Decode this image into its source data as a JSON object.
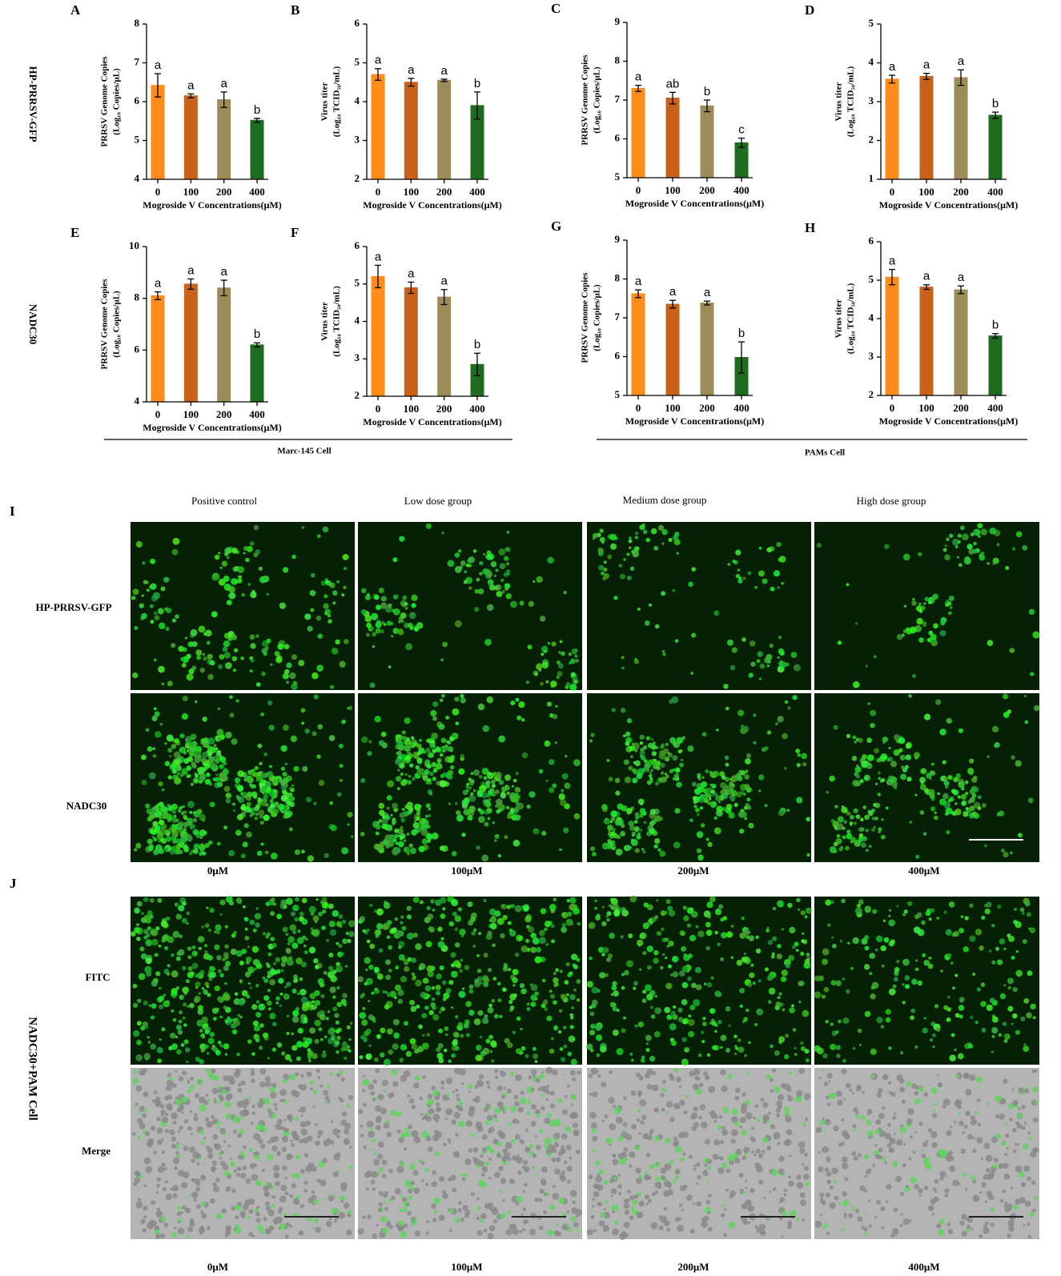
{
  "chart_data": [
    {
      "type": "bar",
      "panel": "A",
      "ylabel": [
        "PRRSV Genome Copies",
        "(Log₁₀ Copies/μL)"
      ],
      "xlabel": "Mogroside V Concentrations(μM)",
      "categories": [
        "0",
        "100",
        "200",
        "400"
      ],
      "values": [
        6.42,
        6.15,
        6.05,
        5.52
      ],
      "errors": [
        0.3,
        0.05,
        0.2,
        0.05
      ],
      "annotations": [
        "a",
        "a",
        "a",
        "b"
      ],
      "colors": [
        "#ff8c1a",
        "#c8621a",
        "#9c8c58",
        "#1f6b1f"
      ],
      "ylim": [
        4,
        8
      ],
      "yticks": [
        4,
        5,
        6,
        7,
        8
      ]
    },
    {
      "type": "bar",
      "panel": "B",
      "ylabel": [
        "Virus titer",
        "(Log₁₀ TCID₅₀/mL)"
      ],
      "xlabel": "Mogroside V Concentrations(μM)",
      "categories": [
        "0",
        "100",
        "200",
        "400"
      ],
      "values": [
        4.7,
        4.5,
        4.55,
        3.9
      ],
      "errors": [
        0.15,
        0.1,
        0.03,
        0.35
      ],
      "annotations": [
        "a",
        "a",
        "a",
        "b"
      ],
      "colors": [
        "#ff8c1a",
        "#c8621a",
        "#9c8c58",
        "#1f6b1f"
      ],
      "ylim": [
        2,
        6
      ],
      "yticks": [
        2,
        3,
        4,
        5,
        6
      ]
    },
    {
      "type": "bar",
      "panel": "C",
      "ylabel": [
        "PRRSV Genome Copies",
        "(Log₁₀ Copies/μL)"
      ],
      "xlabel": "Mogroside V Concentrations(μM)",
      "categories": [
        "0",
        "100",
        "200",
        "400"
      ],
      "values": [
        7.3,
        7.05,
        6.85,
        5.9
      ],
      "errors": [
        0.08,
        0.15,
        0.15,
        0.12
      ],
      "annotations": [
        "a",
        "ab",
        "b",
        "c"
      ],
      "colors": [
        "#ff8c1a",
        "#c8621a",
        "#9c8c58",
        "#1f6b1f"
      ],
      "ylim": [
        5,
        9
      ],
      "yticks": [
        5,
        6,
        7,
        8,
        9
      ]
    },
    {
      "type": "bar",
      "panel": "D",
      "ylabel": [
        "Virus titer",
        "(Log₁₀ TCID₅₀/mL)"
      ],
      "xlabel": "Mogroside V Concentrations(μM)",
      "categories": [
        "0",
        "100",
        "200",
        "400"
      ],
      "values": [
        3.58,
        3.65,
        3.62,
        2.65
      ],
      "errors": [
        0.1,
        0.08,
        0.2,
        0.08
      ],
      "annotations": [
        "a",
        "a",
        "a",
        "b"
      ],
      "colors": [
        "#ff8c1a",
        "#c8621a",
        "#9c8c58",
        "#1f6b1f"
      ],
      "ylim": [
        1,
        5
      ],
      "yticks": [
        1,
        2,
        3,
        4,
        5
      ]
    },
    {
      "type": "bar",
      "panel": "E",
      "ylabel": [
        "PRRSV Genome Copies",
        "(Log₁₀ Copies/μL)"
      ],
      "xlabel": "Mogroside V Concentrations(μM)",
      "categories": [
        "0",
        "100",
        "200",
        "400"
      ],
      "values": [
        8.1,
        8.55,
        8.4,
        6.2
      ],
      "errors": [
        0.15,
        0.2,
        0.3,
        0.08
      ],
      "annotations": [
        "a",
        "a",
        "a",
        "b"
      ],
      "colors": [
        "#ff8c1a",
        "#c8621a",
        "#9c8c58",
        "#1f6b1f"
      ],
      "ylim": [
        4,
        10
      ],
      "yticks": [
        4,
        6,
        8,
        10
      ]
    },
    {
      "type": "bar",
      "panel": "F",
      "ylabel": [
        "Virus titer",
        "(Log₁₀ TCID₅₀/mL)"
      ],
      "xlabel": "Mogroside V Concentrations(μM)",
      "categories": [
        "0",
        "100",
        "200",
        "400"
      ],
      "values": [
        5.2,
        4.9,
        4.65,
        2.85
      ],
      "errors": [
        0.3,
        0.15,
        0.2,
        0.3
      ],
      "annotations": [
        "a",
        "a",
        "a",
        "b"
      ],
      "colors": [
        "#ff8c1a",
        "#c8621a",
        "#9c8c58",
        "#1f6b1f"
      ],
      "ylim": [
        2,
        6
      ],
      "yticks": [
        2,
        3,
        4,
        5,
        6
      ]
    },
    {
      "type": "bar",
      "panel": "G",
      "ylabel": [
        "PRRSV Genome Copies",
        "(Log₁₀ Copies/μL)"
      ],
      "xlabel": "Mogroside V Concentrations(μM)",
      "categories": [
        "0",
        "100",
        "200",
        "400"
      ],
      "values": [
        7.62,
        7.35,
        7.38,
        5.98
      ],
      "errors": [
        0.1,
        0.1,
        0.05,
        0.4
      ],
      "annotations": [
        "a",
        "a",
        "a",
        "b"
      ],
      "colors": [
        "#ff8c1a",
        "#c8621a",
        "#9c8c58",
        "#1f6b1f"
      ],
      "ylim": [
        5,
        9
      ],
      "yticks": [
        5,
        6,
        7,
        8,
        9
      ]
    },
    {
      "type": "bar",
      "panel": "H",
      "ylabel": [
        "Virus titer",
        "(Log₁₀ TCID₅₀/mL)"
      ],
      "xlabel": "Mogroside V Concentrations(μM)",
      "categories": [
        "0",
        "100",
        "200",
        "400"
      ],
      "values": [
        5.08,
        4.82,
        4.75,
        3.55
      ],
      "errors": [
        0.2,
        0.06,
        0.1,
        0.06
      ],
      "annotations": [
        "a",
        "a",
        "a",
        "b"
      ],
      "colors": [
        "#ff8c1a",
        "#c8621a",
        "#9c8c58",
        "#1f6b1f"
      ],
      "ylim": [
        2,
        6
      ],
      "yticks": [
        2,
        3,
        4,
        5,
        6
      ]
    }
  ],
  "figure": {
    "chart_row_labels": [
      "HP-PRRSV-GFP",
      "NADC30"
    ],
    "cell_groups": [
      "Marc-145 Cell",
      "PAMs Cell"
    ],
    "panel_i": {
      "letter": "I",
      "column_titles": [
        "Positive control",
        "Low dose group",
        "Medium dose group",
        "High dose group"
      ],
      "row_labels": [
        "HP-PRRSV-GFP",
        "NADC30"
      ],
      "doses": [
        "0μM",
        "100μM",
        "200μM",
        "400μM"
      ]
    },
    "panel_j": {
      "letter": "J",
      "side_label": "NADC30+PAM Cell",
      "row_labels": [
        "FITC",
        "Merge"
      ],
      "doses": [
        "0μM",
        "100μM",
        "200μM",
        "400μM"
      ]
    }
  }
}
